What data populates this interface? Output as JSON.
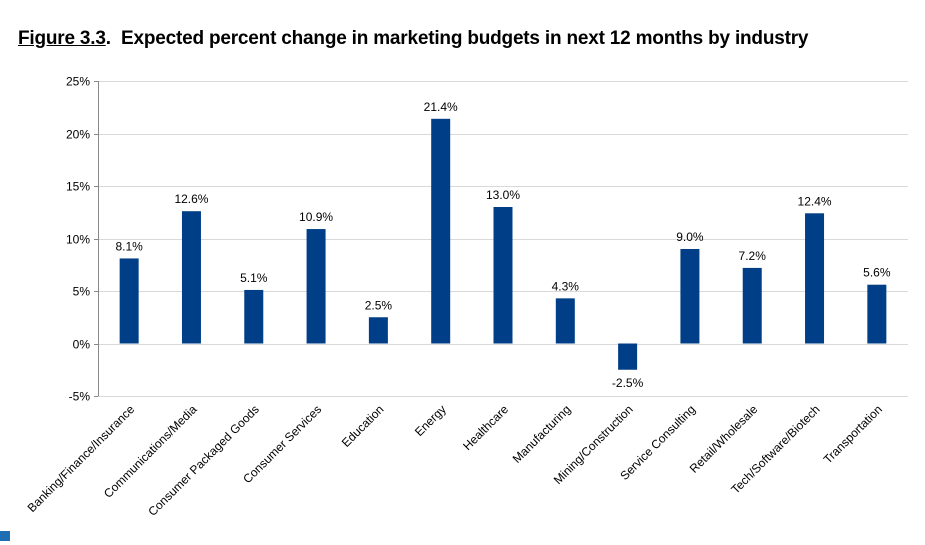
{
  "figure": {
    "number": "Figure 3.3",
    "title": "Expected percent change in marketing budgets in next 12 months by industry"
  },
  "colors": {
    "bar": "#003f87",
    "grid": "#d9d9d9",
    "marker": "#1f6db3"
  },
  "chart_data": {
    "type": "bar",
    "title": "Expected percent change in marketing budgets in next 12 months by industry",
    "categories": [
      "Banking/Finance/Insurance",
      "Communications/Media",
      "Consumer Packaged Goods",
      "Consumer Services",
      "Education",
      "Energy",
      "Healthcare",
      "Manufacturing",
      "Mining/Construction",
      "Service Consulting",
      "Retail/Wholesale",
      "Tech/Software/Biotech",
      "Transportation"
    ],
    "values": [
      8.1,
      12.6,
      5.1,
      10.9,
      2.5,
      21.4,
      13.0,
      4.3,
      -2.5,
      9.0,
      7.2,
      12.4,
      5.6
    ],
    "value_labels": [
      "8.1%",
      "12.6%",
      "5.1%",
      "10.9%",
      "2.5%",
      "21.4%",
      "13.0%",
      "4.3%",
      "-2.5%",
      "9.0%",
      "7.2%",
      "12.4%",
      "5.6%"
    ],
    "yticks": [
      25,
      20,
      15,
      10,
      5,
      0,
      -5
    ],
    "ytick_labels": [
      "25%",
      "20%",
      "15%",
      "10%",
      "5%",
      "0%",
      "-5%"
    ],
    "ylim": [
      -5,
      25
    ],
    "xlabel": "",
    "ylabel": "",
    "grid": true,
    "legend": "none"
  }
}
